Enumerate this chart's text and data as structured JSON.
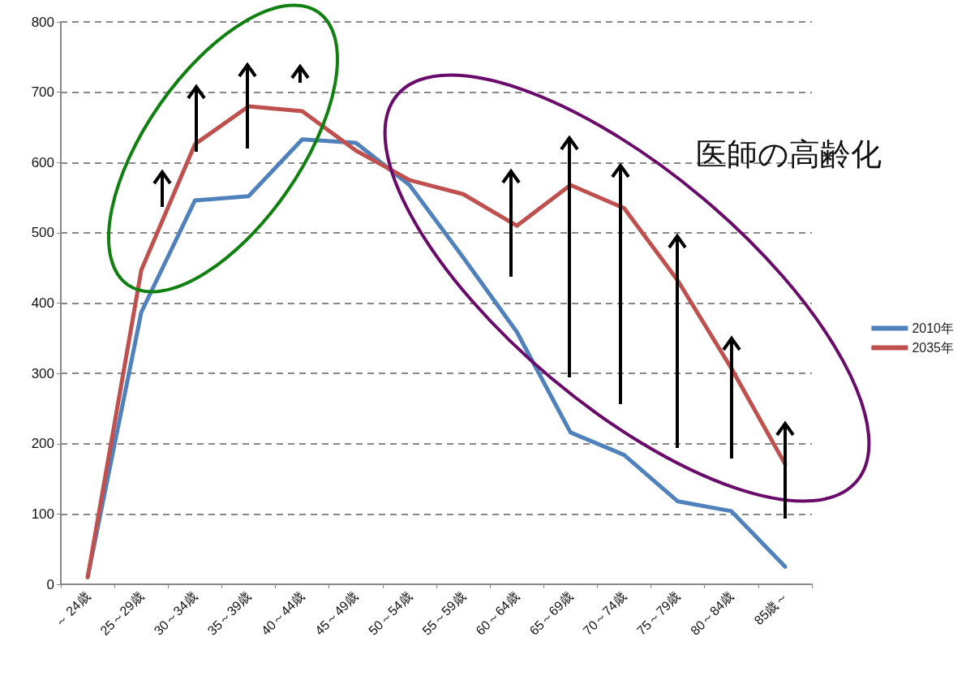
{
  "chart_data": {
    "type": "line",
    "categories": [
      "～ 24歳",
      "25～29歳",
      "30～34歳",
      "35～39歳",
      "40～44歳",
      "45～49歳",
      "50～54歳",
      "55～59歳",
      "60～64歳",
      "65～69歳",
      "70～74歳",
      "75～79歳",
      "80～84歳",
      "85歳～"
    ],
    "series": [
      {
        "name": "2010年",
        "color": "#4f81bd",
        "values": [
          10,
          387,
          546,
          552,
          633,
          628,
          568,
          465,
          359,
          216,
          184,
          118,
          104,
          25
        ]
      },
      {
        "name": "2035年",
        "color": "#c0504d",
        "values": [
          10,
          447,
          626,
          680,
          673,
          617,
          575,
          555,
          510,
          568,
          535,
          432,
          307,
          171
        ]
      }
    ],
    "ylim": [
      0,
      800
    ],
    "yticks": [
      0,
      100,
      200,
      300,
      400,
      500,
      600,
      700,
      800
    ],
    "grid": "y",
    "legend": "right",
    "marker": "none",
    "line_style": "solid",
    "annotations": [
      "医師の高齢化"
    ]
  }
}
